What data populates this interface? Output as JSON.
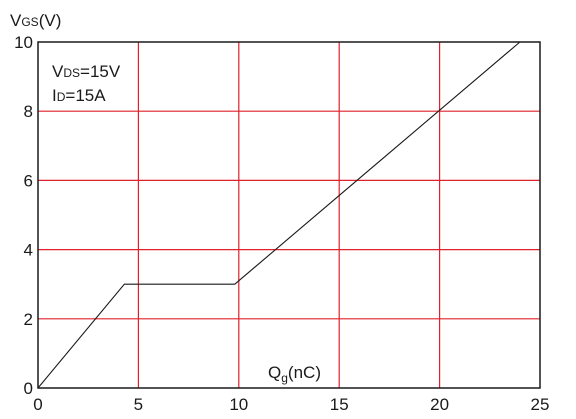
{
  "chart_data": {
    "type": "line",
    "xlabel": {
      "main": "Q",
      "sub": "g",
      "unit": "(nC)"
    },
    "ylabel": {
      "main": "V",
      "sub": "GS",
      "unit": "(V)"
    },
    "xlim": [
      0,
      25
    ],
    "ylim": [
      0,
      10
    ],
    "xticks": [
      "0",
      "5",
      "10",
      "15",
      "20",
      "25"
    ],
    "yticks": [
      "0",
      "2",
      "4",
      "6",
      "8",
      "10"
    ],
    "grid": true,
    "grid_color": "#e0202a",
    "annotations": [
      {
        "main": "V",
        "sub": "DS",
        "rest": "=15V"
      },
      {
        "main": "I",
        "sub": "D",
        "rest": "=15A"
      }
    ],
    "series": [
      {
        "color": "#1a1a1a",
        "x": [
          0,
          4.3,
          9.8,
          24
        ],
        "y": [
          0,
          3,
          3,
          10
        ]
      }
    ]
  }
}
